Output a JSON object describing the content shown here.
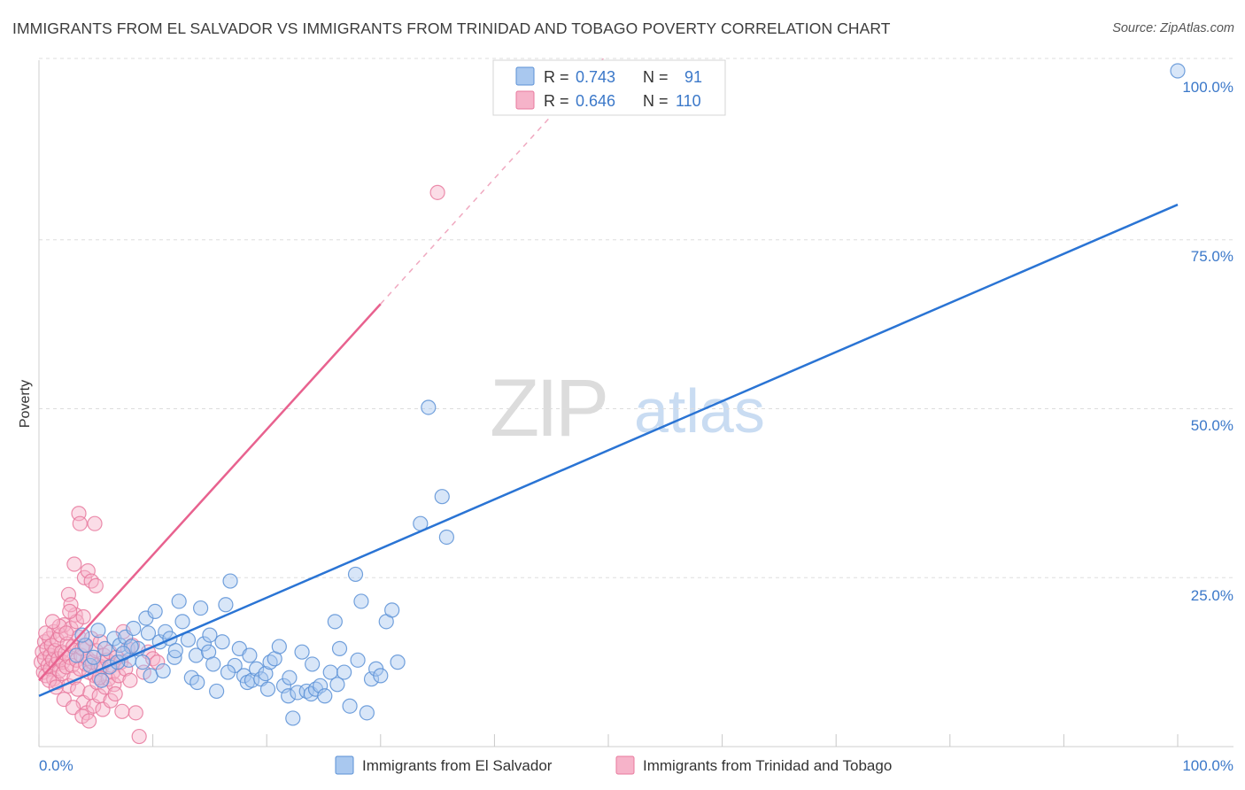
{
  "title": "IMMIGRANTS FROM EL SALVADOR VS IMMIGRANTS FROM TRINIDAD AND TOBAGO POVERTY CORRELATION CHART",
  "source": "Source: ZipAtlas.com",
  "watermark": {
    "zip": "ZIP",
    "atlas": "atlas"
  },
  "colors": {
    "blue_fill": "#a9c8ef",
    "blue_stroke": "#5b91d6",
    "blue_line": "#2a74d4",
    "pink_fill": "#f6b3c9",
    "pink_stroke": "#e8799d",
    "pink_line": "#e8628f",
    "tick_label": "#3b78c9",
    "grid": "#dddddd"
  },
  "legend_top": {
    "rows": [
      {
        "r_label": "R =",
        "r_value": "0.743",
        "n_label": "N =",
        "n_value": "91"
      },
      {
        "r_label": "R =",
        "r_value": "0.646",
        "n_label": "N =",
        "n_value": "110"
      }
    ]
  },
  "legend_bottom": [
    "Immigrants from El Salvador",
    "Immigrants from Trinidad and Tobago"
  ],
  "chart_data": {
    "type": "scatter",
    "title": "IMMIGRANTS FROM EL SALVADOR VS IMMIGRANTS FROM TRINIDAD AND TOBAGO POVERTY CORRELATION CHART",
    "xlabel": "",
    "ylabel": "Poverty",
    "xlim": [
      0,
      100
    ],
    "ylim": [
      0,
      100
    ],
    "x_tick_labels": [
      "0.0%",
      "100.0%"
    ],
    "y_tick_labels": [
      "25.0%",
      "50.0%",
      "75.0%",
      "100.0%"
    ],
    "y_ticks": [
      25,
      50,
      75,
      100
    ],
    "grid": true,
    "legend_position": "top-center",
    "series": [
      {
        "name": "Immigrants from El Salvador",
        "R": 0.743,
        "N": 91,
        "trend": {
          "x": [
            0,
            100
          ],
          "y": [
            7.5,
            80.2
          ]
        },
        "points": [
          [
            3.3,
            13.5
          ],
          [
            4.1,
            15.0
          ],
          [
            4.5,
            12.0
          ],
          [
            5.2,
            17.2
          ],
          [
            5.8,
            14.5
          ],
          [
            6.2,
            11.8
          ],
          [
            6.6,
            16.0
          ],
          [
            7.1,
            15.0
          ],
          [
            7.6,
            16.2
          ],
          [
            7.9,
            12.8
          ],
          [
            8.3,
            17.5
          ],
          [
            8.7,
            14.5
          ],
          [
            9.1,
            12.5
          ],
          [
            9.4,
            19.0
          ],
          [
            9.8,
            10.5
          ],
          [
            10.2,
            20.0
          ],
          [
            10.6,
            15.5
          ],
          [
            11.1,
            17.0
          ],
          [
            11.5,
            16.0
          ],
          [
            11.9,
            13.2
          ],
          [
            12.3,
            21.5
          ],
          [
            12.6,
            18.5
          ],
          [
            13.1,
            15.8
          ],
          [
            13.4,
            10.2
          ],
          [
            13.8,
            13.5
          ],
          [
            14.2,
            20.5
          ],
          [
            14.5,
            15.2
          ],
          [
            14.9,
            14.0
          ],
          [
            15.3,
            12.2
          ],
          [
            15.6,
            8.2
          ],
          [
            16.1,
            15.5
          ],
          [
            16.4,
            21.0
          ],
          [
            16.8,
            24.5
          ],
          [
            17.2,
            12.0
          ],
          [
            17.6,
            14.5
          ],
          [
            18.0,
            10.5
          ],
          [
            18.3,
            9.5
          ],
          [
            18.7,
            9.8
          ],
          [
            19.1,
            11.5
          ],
          [
            19.5,
            10.0
          ],
          [
            19.9,
            10.8
          ],
          [
            20.3,
            12.5
          ],
          [
            20.7,
            13.0
          ],
          [
            21.1,
            14.8
          ],
          [
            21.5,
            9.0
          ],
          [
            21.9,
            7.5
          ],
          [
            22.3,
            4.2
          ],
          [
            22.7,
            8.0
          ],
          [
            23.1,
            14.0
          ],
          [
            23.5,
            8.2
          ],
          [
            23.9,
            7.8
          ],
          [
            24.3,
            8.5
          ],
          [
            24.7,
            9.0
          ],
          [
            25.1,
            7.5
          ],
          [
            25.6,
            11.0
          ],
          [
            26.0,
            18.5
          ],
          [
            26.4,
            14.5
          ],
          [
            26.8,
            11.0
          ],
          [
            27.3,
            6.0
          ],
          [
            27.8,
            25.5
          ],
          [
            28.3,
            21.5
          ],
          [
            28.8,
            5.0
          ],
          [
            29.2,
            10.0
          ],
          [
            29.6,
            11.5
          ],
          [
            30.0,
            10.5
          ],
          [
            30.5,
            18.5
          ],
          [
            31.0,
            20.2
          ],
          [
            31.5,
            12.5
          ],
          [
            33.5,
            33.0
          ],
          [
            34.2,
            50.2
          ],
          [
            35.4,
            37.0
          ],
          [
            35.8,
            31.0
          ],
          [
            100.0,
            100.0
          ],
          [
            4.8,
            13.2
          ],
          [
            6.9,
            12.5
          ],
          [
            8.1,
            14.8
          ],
          [
            9.6,
            16.8
          ],
          [
            10.9,
            11.2
          ],
          [
            12.0,
            14.2
          ],
          [
            13.9,
            9.5
          ],
          [
            15.0,
            16.5
          ],
          [
            16.6,
            11.0
          ],
          [
            18.5,
            13.5
          ],
          [
            20.1,
            8.5
          ],
          [
            22.0,
            10.2
          ],
          [
            24.0,
            12.2
          ],
          [
            26.2,
            9.2
          ],
          [
            28.0,
            12.8
          ],
          [
            3.8,
            16.5
          ],
          [
            5.5,
            9.8
          ],
          [
            7.4,
            13.8
          ]
        ]
      },
      {
        "name": "Immigrants from Trinidad and Tobago",
        "R": 0.646,
        "N": 110,
        "trend": {
          "x": [
            0,
            30
          ],
          "y": [
            9.8,
            65.5
          ]
        },
        "trend_extension": {
          "x": [
            30,
            65
          ],
          "y": [
            65.5,
            130.5
          ]
        },
        "points": [
          [
            0.2,
            12.5
          ],
          [
            0.3,
            14.0
          ],
          [
            0.4,
            11.0
          ],
          [
            0.5,
            15.5
          ],
          [
            0.5,
            13.0
          ],
          [
            0.6,
            10.5
          ],
          [
            0.7,
            14.5
          ],
          [
            0.8,
            12.0
          ],
          [
            0.9,
            16.0
          ],
          [
            1.0,
            13.5
          ],
          [
            1.0,
            11.5
          ],
          [
            1.1,
            15.0
          ],
          [
            1.2,
            12.8
          ],
          [
            1.3,
            10.0
          ],
          [
            1.3,
            17.0
          ],
          [
            1.4,
            14.2
          ],
          [
            1.5,
            12.2
          ],
          [
            1.6,
            9.5
          ],
          [
            1.6,
            15.8
          ],
          [
            1.7,
            13.0
          ],
          [
            1.8,
            11.2
          ],
          [
            1.9,
            16.5
          ],
          [
            2.0,
            14.0
          ],
          [
            2.1,
            12.5
          ],
          [
            2.1,
            10.8
          ],
          [
            2.2,
            18.0
          ],
          [
            2.3,
            13.8
          ],
          [
            2.4,
            11.8
          ],
          [
            2.5,
            15.2
          ],
          [
            2.6,
            9.0
          ],
          [
            2.6,
            22.5
          ],
          [
            2.7,
            13.2
          ],
          [
            2.8,
            17.5
          ],
          [
            2.9,
            12.0
          ],
          [
            3.0,
            14.8
          ],
          [
            3.1,
            10.2
          ],
          [
            3.2,
            19.5
          ],
          [
            3.3,
            12.8
          ],
          [
            3.4,
            8.5
          ],
          [
            3.5,
            16.2
          ],
          [
            3.6,
            11.5
          ],
          [
            3.7,
            13.5
          ],
          [
            3.8,
            14.5
          ],
          [
            3.9,
            6.5
          ],
          [
            4.0,
            15.0
          ],
          [
            4.1,
            12.2
          ],
          [
            4.2,
            5.0
          ],
          [
            4.3,
            13.0
          ],
          [
            4.4,
            11.0
          ],
          [
            4.5,
            8.0
          ],
          [
            4.6,
            16.0
          ],
          [
            4.7,
            12.5
          ],
          [
            4.8,
            6.0
          ],
          [
            4.9,
            10.5
          ],
          [
            5.0,
            14.2
          ],
          [
            5.1,
            9.5
          ],
          [
            5.2,
            12.0
          ],
          [
            5.3,
            7.5
          ],
          [
            5.4,
            15.5
          ],
          [
            5.5,
            11.8
          ],
          [
            5.6,
            5.5
          ],
          [
            5.7,
            13.5
          ],
          [
            5.8,
            8.8
          ],
          [
            6.0,
            12.8
          ],
          [
            6.1,
            10.0
          ],
          [
            6.2,
            14.0
          ],
          [
            6.3,
            6.8
          ],
          [
            6.4,
            12.0
          ],
          [
            6.5,
            11.0
          ],
          [
            6.6,
            9.2
          ],
          [
            6.8,
            13.2
          ],
          [
            7.0,
            10.5
          ],
          [
            7.2,
            12.5
          ],
          [
            7.4,
            17.0
          ],
          [
            7.6,
            11.5
          ],
          [
            7.8,
            14.5
          ],
          [
            8.0,
            9.8
          ],
          [
            8.2,
            15.0
          ],
          [
            8.5,
            5.0
          ],
          [
            8.8,
            1.5
          ],
          [
            9.2,
            11.0
          ],
          [
            9.6,
            14.0
          ],
          [
            10.0,
            13.0
          ],
          [
            10.4,
            12.5
          ],
          [
            3.1,
            27.0
          ],
          [
            3.5,
            34.5
          ],
          [
            4.0,
            25.0
          ],
          [
            4.3,
            26.0
          ],
          [
            4.6,
            24.5
          ],
          [
            5.0,
            23.8
          ],
          [
            3.6,
            33.0
          ],
          [
            4.9,
            33.0
          ],
          [
            2.8,
            21.0
          ],
          [
            3.3,
            18.5
          ],
          [
            35.0,
            82.0
          ],
          [
            1.8,
            17.8
          ],
          [
            2.4,
            16.8
          ],
          [
            0.9,
            9.8
          ],
          [
            1.5,
            8.8
          ],
          [
            2.2,
            7.0
          ],
          [
            3.0,
            5.8
          ],
          [
            3.8,
            4.5
          ],
          [
            4.4,
            3.8
          ],
          [
            5.3,
            10.2
          ],
          [
            6.7,
            7.8
          ],
          [
            7.3,
            5.2
          ],
          [
            0.6,
            16.8
          ],
          [
            1.2,
            18.5
          ],
          [
            2.7,
            20.0
          ],
          [
            3.9,
            19.2
          ]
        ]
      }
    ]
  }
}
